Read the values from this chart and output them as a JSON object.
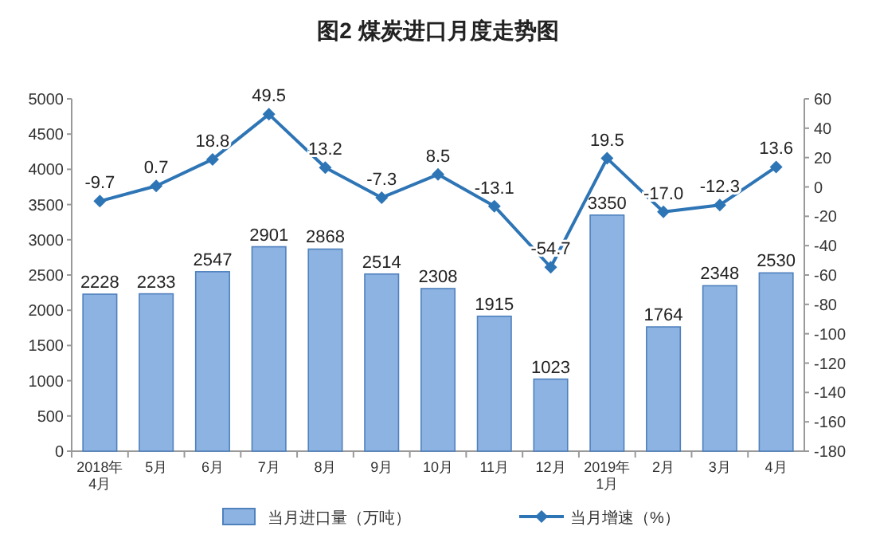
{
  "chart_data": {
    "type": "bar",
    "title": "图2 煤炭进口月度走势图",
    "categories": [
      "2018年\n4月",
      "5月",
      "6月",
      "7月",
      "8月",
      "9月",
      "10月",
      "11月",
      "12月",
      "2019年\n1月",
      "2月",
      "3月",
      "4月"
    ],
    "series": [
      {
        "name": "当月进口量（万吨）",
        "color": "#8db3e2",
        "values": [
          2228,
          2233,
          2547,
          2901,
          2868,
          2514,
          2308,
          1915,
          1023,
          3350,
          1764,
          2348,
          2530
        ],
        "value_labels": [
          "2228",
          "2233",
          "2547",
          "2901",
          "2868",
          "2514",
          "2308",
          "1915",
          "1023",
          "3350",
          "1764",
          "2348",
          "2530"
        ]
      },
      {
        "name": "当月增速（%）",
        "type": "line",
        "axis": "y2",
        "color": "#2e75b6",
        "values": [
          -9.7,
          0.7,
          18.8,
          49.5,
          13.2,
          -7.3,
          8.5,
          -13.1,
          -54.7,
          19.5,
          -17.0,
          -12.3,
          13.6
        ],
        "value_labels": [
          "-9.7",
          "0.7",
          "18.8",
          "49.5",
          "13.2",
          "-7.3",
          "8.5",
          "-13.1",
          "-54.7",
          "19.5",
          "-17.0",
          "-12.3",
          "13.6"
        ]
      }
    ],
    "ylim": [
      0,
      5000
    ],
    "yticks": [
      0,
      500,
      1000,
      1500,
      2000,
      2500,
      3000,
      3500,
      4000,
      4500,
      5000
    ],
    "y2lim": [
      -180,
      60
    ],
    "y2ticks": [
      -180,
      -160,
      -140,
      -120,
      -100,
      -80,
      -60,
      -40,
      -20,
      0,
      20,
      40,
      60
    ],
    "marker": "diamond",
    "legend": "bottom"
  }
}
